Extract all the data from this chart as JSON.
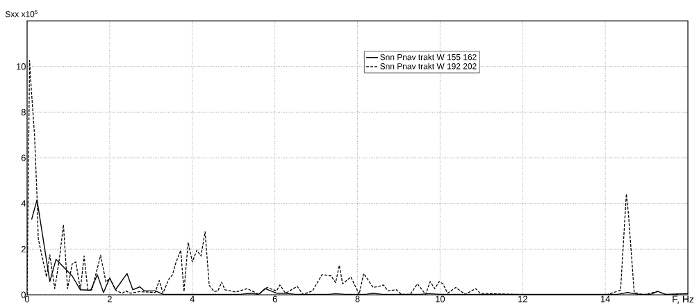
{
  "chart_data": {
    "type": "line",
    "xlabel": "F, Hz",
    "ylabel": "Sxx x10$^{5}$",
    "xlim": [
      0,
      16
    ],
    "ylim": [
      0,
      12
    ],
    "xticks": [
      0,
      2,
      4,
      6,
      8,
      10,
      12,
      14
    ],
    "yticks": [
      0,
      2,
      4,
      6,
      8,
      10
    ],
    "grid": true,
    "legend": "top",
    "marker": "none",
    "series": [
      {
        "name": "Snn Pnav trakt W 155 162",
        "color": "#000000",
        "line_style": "solid",
        "x": [
          0.11,
          0.24,
          0.55,
          0.7,
          1.09,
          1.29,
          1.54,
          1.7,
          1.85,
          2.0,
          2.14,
          2.42,
          2.56,
          2.73,
          2.84,
          3.11,
          3.29,
          4.5,
          5.17,
          5.4,
          5.61,
          5.76,
          6.04,
          6.24,
          6.5,
          7.3,
          7.47,
          7.7,
          8.2,
          8.38,
          8.6,
          9.5,
          9.74,
          10.0,
          11.0,
          12.0,
          14.3,
          14.54,
          14.8,
          15.1,
          15.27,
          15.45,
          16.0
        ],
        "values": [
          3.3,
          4.16,
          0.58,
          1.55,
          0.83,
          0.22,
          0.2,
          0.88,
          0.1,
          0.73,
          0.22,
          0.93,
          0.22,
          0.35,
          0.17,
          0.17,
          0.02,
          0.02,
          0.02,
          0.07,
          0.02,
          0.27,
          0.07,
          0.07,
          0.02,
          0.02,
          0.05,
          0.02,
          0.02,
          0.07,
          0.02,
          0.02,
          0.05,
          0.02,
          0.02,
          0.02,
          0.02,
          0.1,
          0.02,
          0.02,
          0.15,
          0.02,
          0.05
        ]
      },
      {
        "name": "Snn Pnav trakt W 192 202",
        "color": "#000000",
        "line_style": "dashed",
        "x": [
          0,
          0.06,
          0.1,
          0.18,
          0.24,
          0.27,
          0.47,
          0.55,
          0.67,
          0.78,
          0.88,
          0.98,
          1.09,
          1.18,
          1.29,
          1.38,
          1.47,
          1.57,
          1.78,
          1.91,
          2.0,
          2.16,
          2.31,
          2.39,
          2.5,
          2.73,
          3.1,
          3.2,
          3.29,
          3.43,
          3.52,
          3.6,
          3.72,
          3.8,
          3.83,
          3.9,
          4.0,
          4.11,
          4.21,
          4.31,
          4.41,
          4.53,
          4.62,
          4.71,
          4.79,
          4.93,
          5.05,
          5.33,
          5.61,
          5.81,
          6.04,
          6.12,
          6.26,
          6.54,
          6.68,
          6.91,
          7.14,
          7.36,
          7.47,
          7.56,
          7.64,
          7.84,
          8.04,
          8.15,
          8.38,
          8.52,
          8.63,
          8.74,
          8.94,
          9.06,
          9.28,
          9.45,
          9.65,
          9.76,
          9.87,
          9.98,
          10.07,
          10.18,
          10.38,
          10.61,
          10.86,
          10.97,
          11.09,
          12.08,
          14.03,
          14.37,
          14.51,
          14.56,
          14.7,
          14.93,
          15.27,
          15.49,
          15.95
        ],
        "values": [
          0,
          10.27,
          9.05,
          7.0,
          4.3,
          2.46,
          0.78,
          1.75,
          0.27,
          1.55,
          3.07,
          0.27,
          1.34,
          1.44,
          0.22,
          1.7,
          0.22,
          0.22,
          1.73,
          0.55,
          0.73,
          0.17,
          0.07,
          0.17,
          0.07,
          0.14,
          0.1,
          0.63,
          0.07,
          0.68,
          0.88,
          1.39,
          1.95,
          0.14,
          0.83,
          2.3,
          1.44,
          1.95,
          1.7,
          2.76,
          0.41,
          0.14,
          0.17,
          0.55,
          0.22,
          0.17,
          0.12,
          0.27,
          0.02,
          0.32,
          0.17,
          0.43,
          0.07,
          0.37,
          0.02,
          0.17,
          0.88,
          0.83,
          0.53,
          1.29,
          0.48,
          0.78,
          0.02,
          0.93,
          0.32,
          0.37,
          0.43,
          0.17,
          0.22,
          0.02,
          0.02,
          0.48,
          0.02,
          0.58,
          0.27,
          0.58,
          0.48,
          0.07,
          0.32,
          0.02,
          0.27,
          0.07,
          0.06,
          0.0,
          0.0,
          0.2,
          4.42,
          3.55,
          0.1,
          0.0,
          0.15,
          0.0,
          0.05
        ]
      }
    ]
  }
}
